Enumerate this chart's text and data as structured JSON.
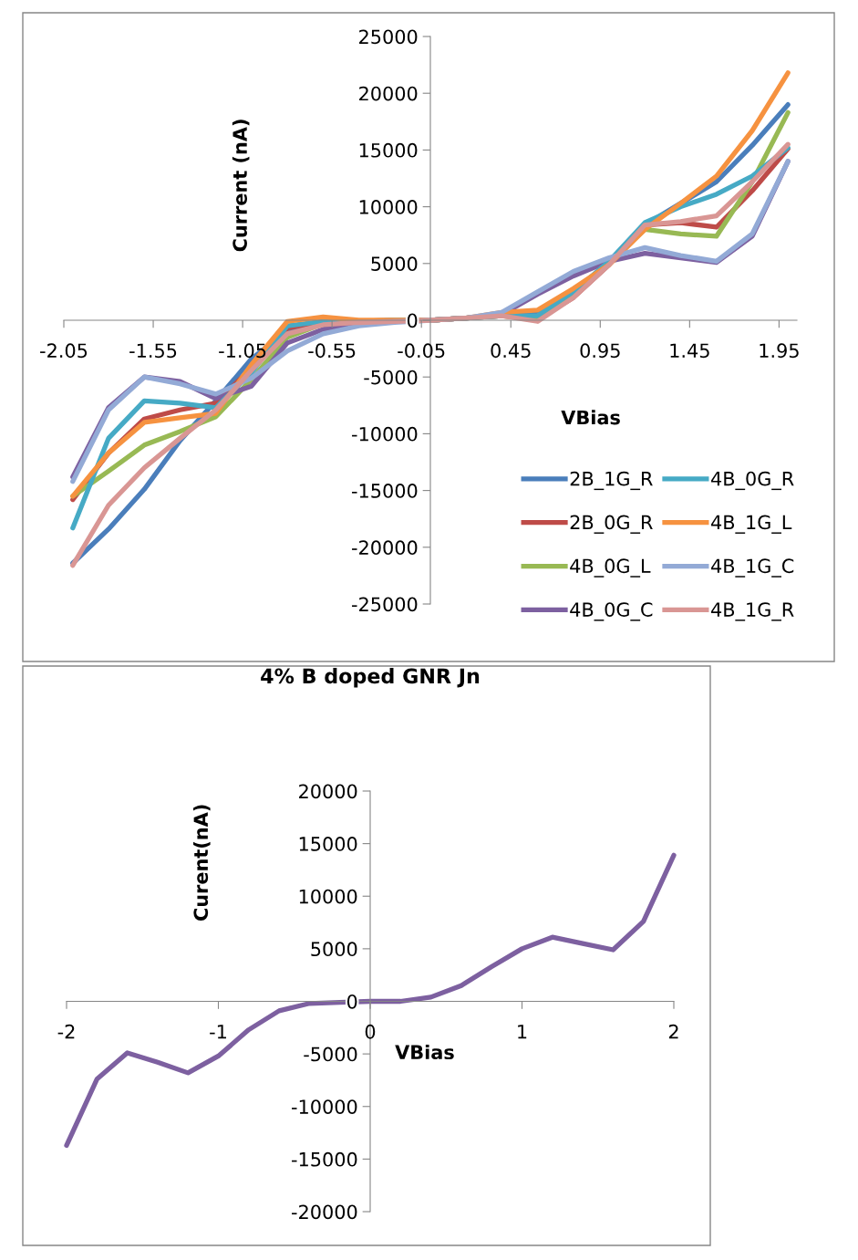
{
  "chart_data": [
    {
      "type": "line",
      "ylabel": "Current (nA)",
      "xlabel": "VBias",
      "legend": "bottom right",
      "grid": false,
      "marker": "none",
      "line_style": "solid",
      "x": [
        -2,
        -1.8,
        -1.6,
        -1.4,
        -1.2,
        -1.0,
        -0.8,
        -0.6,
        -0.4,
        -0.2,
        0,
        0.2,
        0.4,
        0.6,
        0.8,
        1.0,
        1.2,
        1.4,
        1.6,
        1.8,
        2.0
      ],
      "xlim": [
        -2.05,
        2.05
      ],
      "xticks": [
        -2.05,
        -1.55,
        -1.05,
        -0.55,
        -0.05,
        0.45,
        0.95,
        1.45,
        1.95
      ],
      "ylim": [
        -25000,
        25000
      ],
      "yticks": [
        -25000,
        -20000,
        -15000,
        -10000,
        -5000,
        0,
        5000,
        10000,
        15000,
        20000,
        25000
      ],
      "series": [
        {
          "name": "2B_1G_R",
          "color": "#4a7ebb",
          "values": [
            -21400,
            -18400,
            -14900,
            -10600,
            -7100,
            -3400,
            -900,
            -300,
            -200,
            0,
            0,
            200,
            400,
            700,
            2300,
            5200,
            8400,
            10300,
            12200,
            15400,
            19000
          ]
        },
        {
          "name": "2B_0G_R",
          "color": "#be4b48",
          "values": [
            -15800,
            -11700,
            -8700,
            -7900,
            -7300,
            -4200,
            -700,
            -100,
            -100,
            0,
            0,
            200,
            400,
            100,
            2000,
            4900,
            8400,
            8600,
            8200,
            11400,
            15100
          ]
        },
        {
          "name": "4B_0G_L",
          "color": "#98b954",
          "values": [
            -15500,
            -13300,
            -11000,
            -9800,
            -8500,
            -5200,
            -1500,
            -300,
            -200,
            0,
            0,
            200,
            400,
            100,
            2300,
            5200,
            8000,
            7600,
            7400,
            12200,
            18300
          ]
        },
        {
          "name": "4B_0G_C",
          "color": "#7d60a0",
          "values": [
            -13800,
            -7700,
            -5000,
            -5400,
            -6900,
            -5800,
            -2000,
            -800,
            -300,
            -100,
            0,
            200,
            500,
            2300,
            3900,
            5200,
            5900,
            5500,
            5100,
            7400,
            14000
          ]
        },
        {
          "name": "4B_0G_R",
          "color": "#46aac5",
          "values": [
            -18300,
            -10400,
            -7100,
            -7300,
            -7700,
            -4600,
            -500,
            -100,
            -100,
            0,
            0,
            200,
            400,
            400,
            2500,
            5200,
            8600,
            10000,
            11100,
            12700,
            15200
          ]
        },
        {
          "name": "4B_1G_L",
          "color": "#f69240",
          "values": [
            -15500,
            -11700,
            -9000,
            -8600,
            -8200,
            -3900,
            -100,
            300,
            0,
            0,
            0,
            200,
            700,
            900,
            2800,
            4900,
            8000,
            10300,
            12700,
            16700,
            21800
          ]
        },
        {
          "name": "4B_1G_C",
          "color": "#93aad6",
          "values": [
            -14200,
            -7900,
            -5000,
            -5600,
            -6500,
            -5100,
            -2700,
            -1200,
            -500,
            -200,
            0,
            200,
            700,
            2500,
            4300,
            5500,
            6400,
            5700,
            5200,
            7600,
            14000
          ]
        },
        {
          "name": "4B_1G_R",
          "color": "#d99694",
          "values": [
            -21600,
            -16300,
            -13000,
            -10400,
            -7900,
            -4400,
            -1200,
            -400,
            -200,
            -100,
            0,
            200,
            400,
            -100,
            2000,
            4900,
            8400,
            8700,
            9200,
            12200,
            15500
          ]
        }
      ]
    },
    {
      "type": "line",
      "title": "4% B doped GNR Jn",
      "ylabel": "Curent(nA)",
      "xlabel": "VBias",
      "grid": false,
      "marker": "none",
      "line_style": "solid",
      "x": [
        -2,
        -1.8,
        -1.6,
        -1.4,
        -1.2,
        -1.0,
        -0.8,
        -0.6,
        -0.4,
        -0.2,
        0,
        0.2,
        0.4,
        0.6,
        0.8,
        1.0,
        1.2,
        1.4,
        1.6,
        1.8,
        2.0
      ],
      "xlim": [
        -2,
        2
      ],
      "xticks": [
        -2,
        -1,
        0,
        1,
        2
      ],
      "ylim": [
        -20000,
        20000
      ],
      "yticks": [
        -20000,
        -15000,
        -10000,
        -5000,
        0,
        5000,
        10000,
        15000,
        20000
      ],
      "series": [
        {
          "color": "#7d60a0",
          "values": [
            -13700,
            -7400,
            -4900,
            -5800,
            -6800,
            -5200,
            -2700,
            -900,
            -200,
            -100,
            0,
            0,
            400,
            1500,
            3300,
            5000,
            6100,
            5500,
            4900,
            7600,
            13900
          ]
        }
      ]
    }
  ]
}
